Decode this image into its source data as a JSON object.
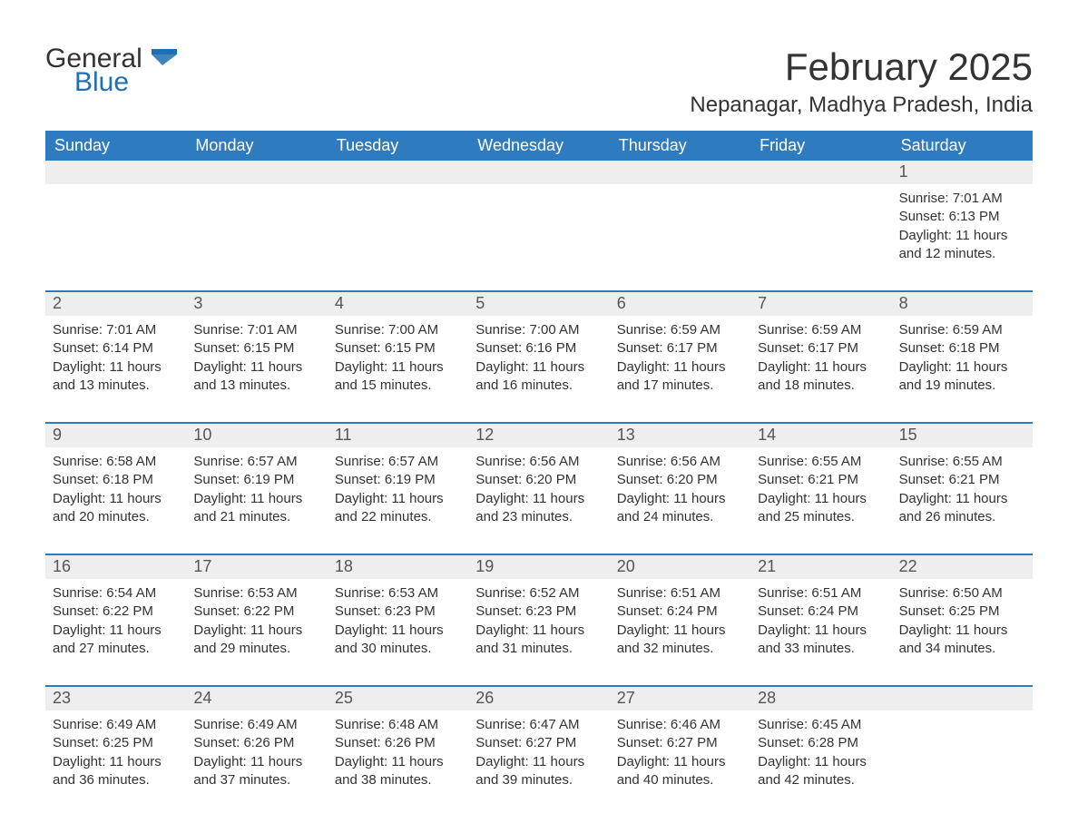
{
  "brand": {
    "name_part1": "General",
    "name_part2": "Blue"
  },
  "title": "February 2025",
  "location": "Nepanagar, Madhya Pradesh, India",
  "colors": {
    "header_bg": "#2f7bbf",
    "header_text": "#ffffff",
    "daynum_bg": "#eeeeee",
    "week_border": "#2f7bbf",
    "body_text": "#333333",
    "brand_blue": "#1f6fb2"
  },
  "typography": {
    "title_fontsize": 42,
    "location_fontsize": 24,
    "weekday_fontsize": 18,
    "daynum_fontsize": 18,
    "cell_fontsize": 15
  },
  "weekdays": [
    "Sunday",
    "Monday",
    "Tuesday",
    "Wednesday",
    "Thursday",
    "Friday",
    "Saturday"
  ],
  "labels": {
    "sunrise": "Sunrise:",
    "sunset": "Sunset:",
    "daylight": "Daylight:"
  },
  "weeks": [
    {
      "days": [
        {
          "n": "",
          "sunrise": "",
          "sunset": "",
          "daylight": ""
        },
        {
          "n": "",
          "sunrise": "",
          "sunset": "",
          "daylight": ""
        },
        {
          "n": "",
          "sunrise": "",
          "sunset": "",
          "daylight": ""
        },
        {
          "n": "",
          "sunrise": "",
          "sunset": "",
          "daylight": ""
        },
        {
          "n": "",
          "sunrise": "",
          "sunset": "",
          "daylight": ""
        },
        {
          "n": "",
          "sunrise": "",
          "sunset": "",
          "daylight": ""
        },
        {
          "n": "1",
          "sunrise": "7:01 AM",
          "sunset": "6:13 PM",
          "daylight": "11 hours and 12 minutes."
        }
      ]
    },
    {
      "days": [
        {
          "n": "2",
          "sunrise": "7:01 AM",
          "sunset": "6:14 PM",
          "daylight": "11 hours and 13 minutes."
        },
        {
          "n": "3",
          "sunrise": "7:01 AM",
          "sunset": "6:15 PM",
          "daylight": "11 hours and 13 minutes."
        },
        {
          "n": "4",
          "sunrise": "7:00 AM",
          "sunset": "6:15 PM",
          "daylight": "11 hours and 15 minutes."
        },
        {
          "n": "5",
          "sunrise": "7:00 AM",
          "sunset": "6:16 PM",
          "daylight": "11 hours and 16 minutes."
        },
        {
          "n": "6",
          "sunrise": "6:59 AM",
          "sunset": "6:17 PM",
          "daylight": "11 hours and 17 minutes."
        },
        {
          "n": "7",
          "sunrise": "6:59 AM",
          "sunset": "6:17 PM",
          "daylight": "11 hours and 18 minutes."
        },
        {
          "n": "8",
          "sunrise": "6:59 AM",
          "sunset": "6:18 PM",
          "daylight": "11 hours and 19 minutes."
        }
      ]
    },
    {
      "days": [
        {
          "n": "9",
          "sunrise": "6:58 AM",
          "sunset": "6:18 PM",
          "daylight": "11 hours and 20 minutes."
        },
        {
          "n": "10",
          "sunrise": "6:57 AM",
          "sunset": "6:19 PM",
          "daylight": "11 hours and 21 minutes."
        },
        {
          "n": "11",
          "sunrise": "6:57 AM",
          "sunset": "6:19 PM",
          "daylight": "11 hours and 22 minutes."
        },
        {
          "n": "12",
          "sunrise": "6:56 AM",
          "sunset": "6:20 PM",
          "daylight": "11 hours and 23 minutes."
        },
        {
          "n": "13",
          "sunrise": "6:56 AM",
          "sunset": "6:20 PM",
          "daylight": "11 hours and 24 minutes."
        },
        {
          "n": "14",
          "sunrise": "6:55 AM",
          "sunset": "6:21 PM",
          "daylight": "11 hours and 25 minutes."
        },
        {
          "n": "15",
          "sunrise": "6:55 AM",
          "sunset": "6:21 PM",
          "daylight": "11 hours and 26 minutes."
        }
      ]
    },
    {
      "days": [
        {
          "n": "16",
          "sunrise": "6:54 AM",
          "sunset": "6:22 PM",
          "daylight": "11 hours and 27 minutes."
        },
        {
          "n": "17",
          "sunrise": "6:53 AM",
          "sunset": "6:22 PM",
          "daylight": "11 hours and 29 minutes."
        },
        {
          "n": "18",
          "sunrise": "6:53 AM",
          "sunset": "6:23 PM",
          "daylight": "11 hours and 30 minutes."
        },
        {
          "n": "19",
          "sunrise": "6:52 AM",
          "sunset": "6:23 PM",
          "daylight": "11 hours and 31 minutes."
        },
        {
          "n": "20",
          "sunrise": "6:51 AM",
          "sunset": "6:24 PM",
          "daylight": "11 hours and 32 minutes."
        },
        {
          "n": "21",
          "sunrise": "6:51 AM",
          "sunset": "6:24 PM",
          "daylight": "11 hours and 33 minutes."
        },
        {
          "n": "22",
          "sunrise": "6:50 AM",
          "sunset": "6:25 PM",
          "daylight": "11 hours and 34 minutes."
        }
      ]
    },
    {
      "days": [
        {
          "n": "23",
          "sunrise": "6:49 AM",
          "sunset": "6:25 PM",
          "daylight": "11 hours and 36 minutes."
        },
        {
          "n": "24",
          "sunrise": "6:49 AM",
          "sunset": "6:26 PM",
          "daylight": "11 hours and 37 minutes."
        },
        {
          "n": "25",
          "sunrise": "6:48 AM",
          "sunset": "6:26 PM",
          "daylight": "11 hours and 38 minutes."
        },
        {
          "n": "26",
          "sunrise": "6:47 AM",
          "sunset": "6:27 PM",
          "daylight": "11 hours and 39 minutes."
        },
        {
          "n": "27",
          "sunrise": "6:46 AM",
          "sunset": "6:27 PM",
          "daylight": "11 hours and 40 minutes."
        },
        {
          "n": "28",
          "sunrise": "6:45 AM",
          "sunset": "6:28 PM",
          "daylight": "11 hours and 42 minutes."
        },
        {
          "n": "",
          "sunrise": "",
          "sunset": "",
          "daylight": ""
        }
      ]
    }
  ]
}
